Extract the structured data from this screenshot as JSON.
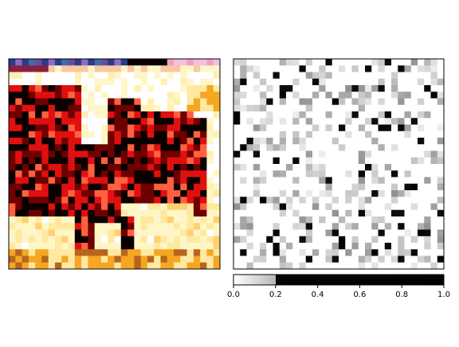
{
  "chart_data": [
    {
      "type": "heatmap",
      "title": "",
      "xlabel": "",
      "ylabel": "",
      "rows": 32,
      "cols": 32,
      "axes": "hidden",
      "content": "low-resolution pixelated color photo (horse in red/black on yellow-white background)",
      "palette": {
        "dark_red": "#6e0000",
        "red": "#e01010",
        "black": "#0a0000",
        "cream": "#fff6c8",
        "yellow": "#ffe9a0",
        "orange": "#f5a623",
        "brown": "#b5651d",
        "white": "#ffffff",
        "purple": "#8a6cc4",
        "blue": "#2c3a8c",
        "pink": "#f0a0c8"
      }
    },
    {
      "type": "heatmap",
      "title": "",
      "xlabel": "",
      "ylabel": "",
      "rows": 32,
      "cols": 32,
      "colormap": "gray_r",
      "vmin": 0,
      "vmax": 1,
      "colorbar": {
        "orientation": "horizontal",
        "ticks": [
          "0.0",
          "0.2",
          "0.4",
          "0.6",
          "0.8",
          "1.0"
        ],
        "tick_values": [
          0,
          0.2,
          0.4,
          0.6,
          0.8,
          1.0
        ],
        "range": [
          0,
          1
        ],
        "note": "two-tone colorbar: light gradient 0–0.2, black 0.2–1.0"
      },
      "values_description": "sparse random map, mostly near 0 (white) with scattered gray and black cells"
    }
  ]
}
